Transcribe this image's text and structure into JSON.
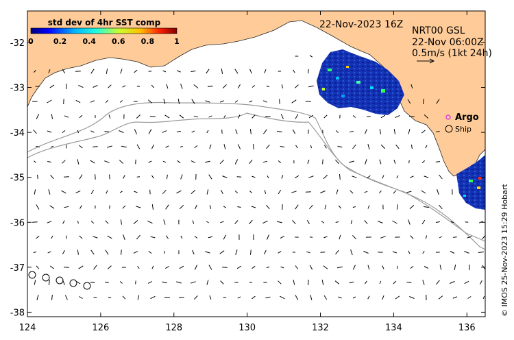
{
  "map": {
    "title_date": "22-Nov-2023 16Z",
    "product": "NRT00 GSL",
    "vector_time": "22-Nov 06:00Z",
    "scale_label": "0.5m/s (1kt 24h)",
    "credit": "© IMOS 25-Nov-2023 15:29 Hobart",
    "colorbar": {
      "title": "std dev of 4hr SST comp",
      "ticks": [
        "0",
        "0.2",
        "0.4",
        "0.6",
        "0.8",
        "1"
      ]
    },
    "legend": {
      "argo_label": "Argo",
      "ship_label": "Ship",
      "argo_color": "#e040e0"
    },
    "x_ticks": [
      "124",
      "126",
      "128",
      "130",
      "132",
      "134",
      "136"
    ],
    "y_ticks": [
      "-32",
      "-33",
      "-34",
      "-35",
      "-36",
      "-37",
      "-38"
    ],
    "lon_range": [
      124,
      136.5
    ],
    "lat_range": [
      -38.1,
      -31.3
    ],
    "colors": {
      "land": "#ffcc99",
      "ocean": "#ffffff",
      "contour": "#9a9a9a"
    }
  }
}
